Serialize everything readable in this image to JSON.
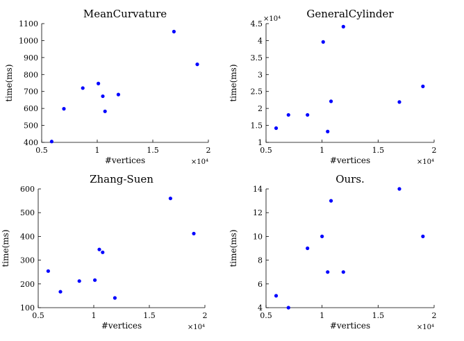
{
  "chart_data": [
    {
      "type": "scatter",
      "title": "MeanCurvature",
      "xlabel": "#vertices",
      "ylabel": "time(ms)",
      "x_multiplier_label": "×10⁴",
      "y_multiplier_label": "",
      "xlim": [
        0.5,
        2.0
      ],
      "ylim": [
        400,
        1100
      ],
      "xticks": [
        0.5,
        1,
        1.5,
        2
      ],
      "xtick_labels": [
        "0.5",
        "1",
        "1.5",
        "2"
      ],
      "yticks": [
        400,
        500,
        600,
        700,
        800,
        900,
        1000,
        1100
      ],
      "ytick_labels": [
        "400",
        "500",
        "600",
        "700",
        "800",
        "900",
        "1000",
        "1100"
      ],
      "grid": false,
      "marker_color": "#0000ff",
      "points": [
        {
          "x": 0.59,
          "y": 405
        },
        {
          "x": 0.7,
          "y": 598
        },
        {
          "x": 0.87,
          "y": 720
        },
        {
          "x": 1.01,
          "y": 747
        },
        {
          "x": 1.05,
          "y": 672
        },
        {
          "x": 1.07,
          "y": 583
        },
        {
          "x": 1.19,
          "y": 682
        },
        {
          "x": 1.69,
          "y": 1053
        },
        {
          "x": 1.9,
          "y": 860
        }
      ]
    },
    {
      "type": "scatter",
      "title": "GeneralCylinder",
      "xlabel": "#vertices",
      "ylabel": "time(ms)",
      "x_multiplier_label": "×10⁴",
      "y_multiplier_label": "×10⁴",
      "xlim": [
        0.5,
        2.0
      ],
      "ylim": [
        1,
        4.5
      ],
      "xticks": [
        0.5,
        1,
        1.5,
        2
      ],
      "xtick_labels": [
        "0.5",
        "1",
        "1.5",
        "2"
      ],
      "yticks": [
        1,
        1.5,
        2,
        2.5,
        3,
        3.5,
        4,
        4.5
      ],
      "ytick_labels": [
        "1",
        "1.5",
        "2",
        "2.5",
        "3",
        "3.5",
        "4",
        "4.5"
      ],
      "grid": false,
      "marker_color": "#0000ff",
      "points": [
        {
          "x": 0.59,
          "y": 1.42
        },
        {
          "x": 0.7,
          "y": 1.81
        },
        {
          "x": 0.87,
          "y": 1.81
        },
        {
          "x": 1.01,
          "y": 3.96
        },
        {
          "x": 1.05,
          "y": 1.32
        },
        {
          "x": 1.08,
          "y": 2.21
        },
        {
          "x": 1.19,
          "y": 4.41
        },
        {
          "x": 1.69,
          "y": 2.19
        },
        {
          "x": 1.9,
          "y": 2.65
        }
      ]
    },
    {
      "type": "scatter",
      "title": "Zhang-Suen",
      "xlabel": "#vertices",
      "ylabel": "time(ms)",
      "x_multiplier_label": "×10⁴",
      "y_multiplier_label": "",
      "xlim": [
        0.5,
        2.0
      ],
      "ylim": [
        100,
        600
      ],
      "xticks": [
        0.5,
        1,
        1.5,
        2
      ],
      "xtick_labels": [
        "0.5",
        "1",
        "1.5",
        "2"
      ],
      "yticks": [
        100,
        200,
        300,
        400,
        500,
        600
      ],
      "ytick_labels": [
        "100",
        "200",
        "300",
        "400",
        "500",
        "600"
      ],
      "grid": false,
      "marker_color": "#0000ff",
      "points": [
        {
          "x": 0.59,
          "y": 254
        },
        {
          "x": 0.7,
          "y": 167
        },
        {
          "x": 0.87,
          "y": 212
        },
        {
          "x": 1.01,
          "y": 216
        },
        {
          "x": 1.05,
          "y": 345
        },
        {
          "x": 1.08,
          "y": 333
        },
        {
          "x": 1.19,
          "y": 141
        },
        {
          "x": 1.69,
          "y": 560
        },
        {
          "x": 1.9,
          "y": 412
        }
      ]
    },
    {
      "type": "scatter",
      "title": "Ours.",
      "xlabel": "#vertices",
      "ylabel": "time(ms)",
      "x_multiplier_label": "×10⁴",
      "y_multiplier_label": "",
      "xlim": [
        0.5,
        2.0
      ],
      "ylim": [
        4,
        14
      ],
      "xticks": [
        0.5,
        1,
        1.5,
        2
      ],
      "xtick_labels": [
        "0.5",
        "1",
        "1.5",
        "2"
      ],
      "yticks": [
        4,
        6,
        8,
        10,
        12,
        14
      ],
      "ytick_labels": [
        "4",
        "6",
        "8",
        "10",
        "12",
        "14"
      ],
      "grid": false,
      "marker_color": "#0000ff",
      "points": [
        {
          "x": 0.59,
          "y": 5
        },
        {
          "x": 0.7,
          "y": 4
        },
        {
          "x": 0.87,
          "y": 9
        },
        {
          "x": 1.0,
          "y": 10
        },
        {
          "x": 1.05,
          "y": 7
        },
        {
          "x": 1.08,
          "y": 13
        },
        {
          "x": 1.19,
          "y": 7
        },
        {
          "x": 1.69,
          "y": 14
        },
        {
          "x": 1.9,
          "y": 10
        }
      ]
    }
  ]
}
